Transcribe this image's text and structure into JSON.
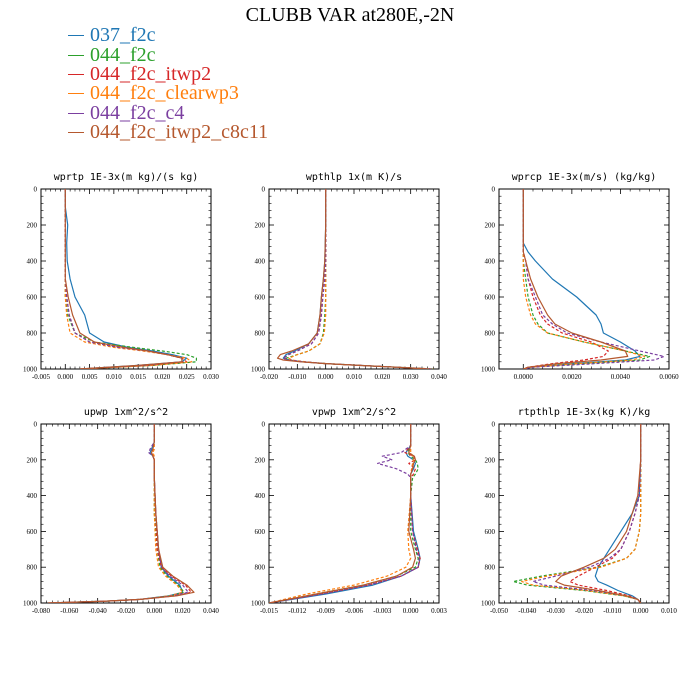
{
  "title": "CLUBB VAR at280E,-2N",
  "legend": [
    {
      "name": "037_f2c",
      "color": "#1f77b4"
    },
    {
      "name": "044_f2c",
      "color": "#2ca02c"
    },
    {
      "name": "044_f2c_itwp2",
      "color": "#d62728"
    },
    {
      "name": "044_f2c_clearwp3",
      "color": "#ff7f0e"
    },
    {
      "name": "044_f2c_c4",
      "color": "#7b3fa0"
    },
    {
      "name": "044_f2c_itwp2_c8c11",
      "color": "#b5582e"
    }
  ],
  "chart_data": [
    {
      "type": "line",
      "title": "wprtp   1E-3x(m kg)/(s kg)",
      "xlim": [
        -0.005,
        0.03
      ],
      "xticks": [
        "-0.005",
        "0.000",
        "0.005",
        "0.010",
        "0.015",
        "0.020",
        "0.025",
        "0.030"
      ],
      "ylim": [
        1000,
        0
      ],
      "yticks": [
        "0",
        "200",
        "400",
        "600",
        "800",
        "1000"
      ],
      "y": [
        0,
        100,
        200,
        300,
        400,
        500,
        600,
        700,
        800,
        850,
        880,
        900,
        920,
        940,
        960,
        980,
        1000
      ],
      "series": [
        {
          "style": "solid",
          "values": [
            0,
            0,
            0.0005,
            0.0003,
            0.0004,
            0.001,
            0.002,
            0.004,
            0.005,
            0.008,
            0.013,
            0.018,
            0.022,
            0.025,
            0.024,
            0.015,
            0.003
          ]
        },
        {
          "style": "dashed",
          "values": [
            0,
            0,
            0,
            0,
            0,
            0,
            0,
            0.0005,
            0.002,
            0.006,
            0.014,
            0.02,
            0.025,
            0.027,
            0.027,
            0.018,
            0.003
          ]
        },
        {
          "style": "dashed",
          "values": [
            0,
            0,
            0,
            0,
            0,
            0,
            0.0003,
            0.0008,
            0.002,
            0.005,
            0.011,
            0.017,
            0.021,
            0.024,
            0.025,
            0.017,
            0.003
          ]
        },
        {
          "style": "dashed",
          "values": [
            0,
            0,
            0,
            0,
            0,
            0,
            0,
            0.0003,
            0.001,
            0.004,
            0.01,
            0.016,
            0.021,
            0.025,
            0.026,
            0.018,
            0.003
          ]
        },
        {
          "style": "dashed",
          "values": [
            0,
            0,
            0,
            0,
            0,
            0,
            0.0003,
            0.0008,
            0.002,
            0.005,
            0.011,
            0.017,
            0.021,
            0.024,
            0.024,
            0.016,
            0.003
          ]
        },
        {
          "style": "solid",
          "values": [
            0,
            0,
            0,
            0,
            0,
            0,
            0.0006,
            0.0015,
            0.003,
            0.006,
            0.012,
            0.017,
            0.021,
            0.024,
            0.024,
            0.015,
            0.003
          ]
        }
      ]
    },
    {
      "type": "line",
      "title": "wpthlp   1x(m K)/s",
      "xlim": [
        -0.02,
        0.04
      ],
      "xticks": [
        "-0.020",
        "-0.010",
        "0.000",
        "0.010",
        "0.020",
        "0.030",
        "0.040"
      ],
      "ylim": [
        1000,
        0
      ],
      "yticks": [
        "0",
        "200",
        "400",
        "600",
        "800",
        "1000"
      ],
      "y": [
        0,
        200,
        400,
        500,
        600,
        700,
        800,
        860,
        900,
        920,
        940,
        950,
        960,
        970,
        980,
        990,
        1000
      ],
      "series": [
        {
          "style": "solid",
          "values": [
            0,
            0,
            -0.0003,
            -0.0008,
            -0.0015,
            -0.002,
            -0.003,
            -0.006,
            -0.011,
            -0.014,
            -0.015,
            -0.013,
            -0.008,
            0,
            0.012,
            0.025,
            0.037
          ]
        },
        {
          "style": "dashed",
          "values": [
            0,
            0,
            0,
            0,
            0,
            -0.0003,
            -0.0008,
            -0.002,
            -0.006,
            -0.01,
            -0.014,
            -0.013,
            -0.008,
            0,
            0.012,
            0.025,
            0.038
          ]
        },
        {
          "style": "dashed",
          "values": [
            0,
            0,
            0,
            -0.0003,
            -0.001,
            -0.0015,
            -0.0025,
            -0.005,
            -0.01,
            -0.013,
            -0.015,
            -0.013,
            -0.008,
            0,
            0.012,
            0.025,
            0.037
          ]
        },
        {
          "style": "dashed",
          "values": [
            0,
            0,
            0,
            0,
            0,
            0,
            -0.0005,
            -0.002,
            -0.006,
            -0.01,
            -0.013,
            -0.012,
            -0.007,
            0,
            0.012,
            0.025,
            0.038
          ]
        },
        {
          "style": "dashed",
          "values": [
            0,
            0,
            0,
            -0.0003,
            -0.001,
            -0.0015,
            -0.0025,
            -0.005,
            -0.01,
            -0.013,
            -0.015,
            -0.013,
            -0.008,
            0,
            0.012,
            0.025,
            0.037
          ]
        },
        {
          "style": "solid",
          "values": [
            0,
            0,
            -0.0003,
            -0.0008,
            -0.0015,
            -0.002,
            -0.003,
            -0.006,
            -0.012,
            -0.016,
            -0.017,
            -0.015,
            -0.009,
            0,
            0.012,
            0.025,
            0.036
          ]
        }
      ]
    },
    {
      "type": "line",
      "title": "wprcp   1E-3x(m/s) (kg/kg)",
      "xlim": [
        -0.001,
        0.006
      ],
      "xticks": [
        "0.0000",
        "0.0020",
        "0.0040",
        "0.0060"
      ],
      "ylim": [
        1000,
        0
      ],
      "yticks": [
        "0",
        "200",
        "400",
        "600",
        "800",
        "1000"
      ],
      "y": [
        0,
        200,
        300,
        350,
        400,
        500,
        600,
        700,
        750,
        800,
        850,
        900,
        930,
        950,
        970,
        990,
        1000
      ],
      "series": [
        {
          "style": "solid",
          "values": [
            0,
            0,
            0,
            0.0002,
            0.0005,
            0.0012,
            0.0022,
            0.003,
            0.0032,
            0.0033,
            0.004,
            0.0046,
            0.0048,
            0.0042,
            0.002,
            0.0003,
            0
          ]
        },
        {
          "style": "dashed",
          "values": [
            0,
            0,
            0,
            0,
            0,
            0.0001,
            0.0002,
            0.0004,
            0.0006,
            0.001,
            0.0025,
            0.0042,
            0.0052,
            0.0048,
            0.0025,
            0.0003,
            0
          ]
        },
        {
          "style": "dashed",
          "values": [
            0,
            0,
            0,
            0,
            0.0001,
            0.0002,
            0.0004,
            0.0007,
            0.001,
            0.0016,
            0.0028,
            0.0035,
            0.0033,
            0.0025,
            0.0012,
            0.0002,
            0
          ]
        },
        {
          "style": "dashed",
          "values": [
            0,
            0,
            0,
            0,
            0,
            0,
            0.0001,
            0.0003,
            0.0005,
            0.001,
            0.0025,
            0.0042,
            0.005,
            0.0045,
            0.0022,
            0.0003,
            0
          ]
        },
        {
          "style": "dashed",
          "values": [
            0,
            0,
            0,
            0,
            0.0001,
            0.0002,
            0.0005,
            0.0008,
            0.0012,
            0.0018,
            0.0032,
            0.0048,
            0.0058,
            0.0054,
            0.003,
            0.0004,
            0
          ]
        },
        {
          "style": "solid",
          "values": [
            0,
            0,
            0,
            0,
            0.0001,
            0.0003,
            0.0006,
            0.001,
            0.0013,
            0.002,
            0.0032,
            0.0042,
            0.0043,
            0.0032,
            0.0014,
            0.0002,
            0
          ]
        }
      ]
    },
    {
      "type": "line",
      "title": "upwp   1xm^2/s^2",
      "xlim": [
        -0.08,
        0.04
      ],
      "xticks": [
        "-0.080",
        "-0.060",
        "-0.040",
        "-0.020",
        "0.000",
        "0.020",
        "0.040"
      ],
      "ylim": [
        1000,
        0
      ],
      "yticks": [
        "0",
        "200",
        "400",
        "600",
        "800",
        "1000"
      ],
      "y": [
        0,
        100,
        140,
        160,
        180,
        200,
        300,
        500,
        700,
        800,
        850,
        900,
        940,
        960,
        980,
        990,
        1000
      ],
      "series": [
        {
          "style": "solid",
          "values": [
            0,
            0,
            -0.002,
            -0.003,
            -0.001,
            0,
            0,
            0.001,
            0.003,
            0.005,
            0.01,
            0.018,
            0.02,
            0.01,
            -0.01,
            -0.035,
            -0.075
          ]
        },
        {
          "style": "dashed",
          "values": [
            0,
            0,
            -0.001,
            -0.002,
            -0.001,
            0,
            0,
            0,
            0.002,
            0.004,
            0.009,
            0.017,
            0.021,
            0.012,
            -0.01,
            -0.035,
            -0.075
          ]
        },
        {
          "style": "dashed",
          "values": [
            0,
            0,
            -0.001,
            -0.002,
            -0.001,
            0,
            0,
            0.001,
            0.002,
            0.005,
            0.012,
            0.022,
            0.026,
            0.015,
            -0.01,
            -0.035,
            -0.075
          ]
        },
        {
          "style": "dashed",
          "values": [
            0,
            0,
            0,
            -0.001,
            0,
            0,
            0,
            0,
            0.001,
            0.003,
            0.008,
            0.016,
            0.02,
            0.011,
            -0.01,
            -0.035,
            -0.075
          ]
        },
        {
          "style": "dashed",
          "values": [
            0,
            0,
            -0.003,
            -0.004,
            -0.001,
            0,
            0,
            0.001,
            0.003,
            0.005,
            0.011,
            0.02,
            0.024,
            0.013,
            -0.01,
            -0.035,
            -0.075
          ]
        },
        {
          "style": "solid",
          "values": [
            0,
            0,
            -0.001,
            -0.002,
            -0.001,
            0,
            0,
            0.001,
            0.003,
            0.006,
            0.013,
            0.023,
            0.028,
            0.016,
            -0.01,
            -0.035,
            -0.075
          ]
        }
      ]
    },
    {
      "type": "line",
      "title": "vpwp   1xm^2/s^2",
      "xlim": [
        -0.015,
        0.003
      ],
      "xticks": [
        "-0.015",
        "-0.012",
        "-0.009",
        "-0.006",
        "-0.003",
        "0.000",
        "0.003"
      ],
      "ylim": [
        1000,
        0
      ],
      "yticks": [
        "0",
        "200",
        "400",
        "600",
        "800",
        "1000"
      ],
      "y": [
        0,
        120,
        160,
        180,
        200,
        220,
        250,
        280,
        300,
        400,
        600,
        700,
        750,
        800,
        850,
        900,
        950,
        1000
      ],
      "series": [
        {
          "style": "solid",
          "values": [
            0,
            0,
            -0.0005,
            -0.0003,
            0.0003,
            0.0005,
            0.0003,
            0,
            0,
            0,
            0.0003,
            0.0008,
            0.001,
            0.0008,
            -0.001,
            -0.004,
            -0.009,
            -0.015
          ]
        },
        {
          "style": "dashed",
          "values": [
            0,
            0,
            -0.0003,
            0,
            0.0005,
            0.0007,
            0.0008,
            0.0005,
            0.0002,
            0,
            0,
            0.0005,
            0.0008,
            0.0005,
            -0.0015,
            -0.005,
            -0.01,
            -0.015
          ]
        },
        {
          "style": "dashed",
          "values": [
            0,
            0,
            -0.0006,
            0.0003,
            0.0005,
            -0.0002,
            0.0005,
            0.0003,
            0,
            0,
            0.0002,
            0.0007,
            0.001,
            0.0008,
            -0.001,
            -0.0045,
            -0.0095,
            -0.015
          ]
        },
        {
          "style": "dashed",
          "values": [
            0,
            0,
            0,
            0.0002,
            0.0003,
            0.0002,
            0.0001,
            0,
            0,
            0,
            -0.0003,
            -0.0002,
            0,
            -0.0005,
            -0.0025,
            -0.006,
            -0.011,
            -0.015
          ]
        },
        {
          "style": "dashed",
          "values": [
            0,
            0,
            -0.001,
            -0.003,
            -0.002,
            -0.0035,
            -0.0015,
            -0.0003,
            0,
            0,
            0.0002,
            0.0006,
            0.0009,
            0.0008,
            -0.001,
            -0.0045,
            -0.0095,
            -0.015
          ]
        },
        {
          "style": "solid",
          "values": [
            0,
            0,
            -0.0002,
            0.0004,
            0.0005,
            0.0003,
            0.0002,
            0,
            0,
            0,
            -0.0002,
            0.0003,
            0.0005,
            0.0002,
            -0.0015,
            -0.005,
            -0.01,
            -0.015
          ]
        }
      ]
    },
    {
      "type": "line",
      "title": "rtpthlp   1E-3x(kg K)/kg",
      "xlim": [
        -0.05,
        0.01
      ],
      "xticks": [
        "-0.050",
        "-0.040",
        "-0.030",
        "-0.020",
        "-0.010",
        "0.000",
        "0.010"
      ],
      "ylim": [
        1000,
        0
      ],
      "yticks": [
        "0",
        "200",
        "400",
        "600",
        "800",
        "1000"
      ],
      "y": [
        0,
        200,
        400,
        500,
        600,
        700,
        750,
        800,
        850,
        880,
        900,
        930,
        960,
        980,
        1000
      ],
      "series": [
        {
          "style": "solid",
          "values": [
            0,
            0,
            -0.0005,
            -0.003,
            -0.007,
            -0.011,
            -0.013,
            -0.015,
            -0.016,
            -0.015,
            -0.012,
            -0.008,
            -0.003,
            -0.001,
            0
          ]
        },
        {
          "style": "dashed",
          "values": [
            0,
            0,
            0,
            0,
            -0.0005,
            -0.002,
            -0.005,
            -0.015,
            -0.035,
            -0.045,
            -0.04,
            -0.02,
            -0.006,
            -0.001,
            0
          ]
        },
        {
          "style": "dashed",
          "values": [
            0,
            0,
            -0.0005,
            -0.002,
            -0.004,
            -0.007,
            -0.01,
            -0.016,
            -0.022,
            -0.025,
            -0.022,
            -0.012,
            -0.004,
            -0.001,
            0
          ]
        },
        {
          "style": "dashed",
          "values": [
            0,
            0,
            0,
            0,
            -0.0005,
            -0.002,
            -0.005,
            -0.014,
            -0.033,
            -0.042,
            -0.038,
            -0.019,
            -0.006,
            -0.001,
            0
          ]
        },
        {
          "style": "dashed",
          "values": [
            0,
            0,
            -0.0005,
            -0.002,
            -0.004,
            -0.007,
            -0.011,
            -0.018,
            -0.03,
            -0.038,
            -0.034,
            -0.017,
            -0.005,
            -0.001,
            0
          ]
        },
        {
          "style": "solid",
          "values": [
            0,
            0,
            -0.001,
            -0.003,
            -0.005,
            -0.009,
            -0.013,
            -0.02,
            -0.028,
            -0.03,
            -0.027,
            -0.015,
            -0.005,
            -0.001,
            0
          ]
        }
      ]
    }
  ]
}
